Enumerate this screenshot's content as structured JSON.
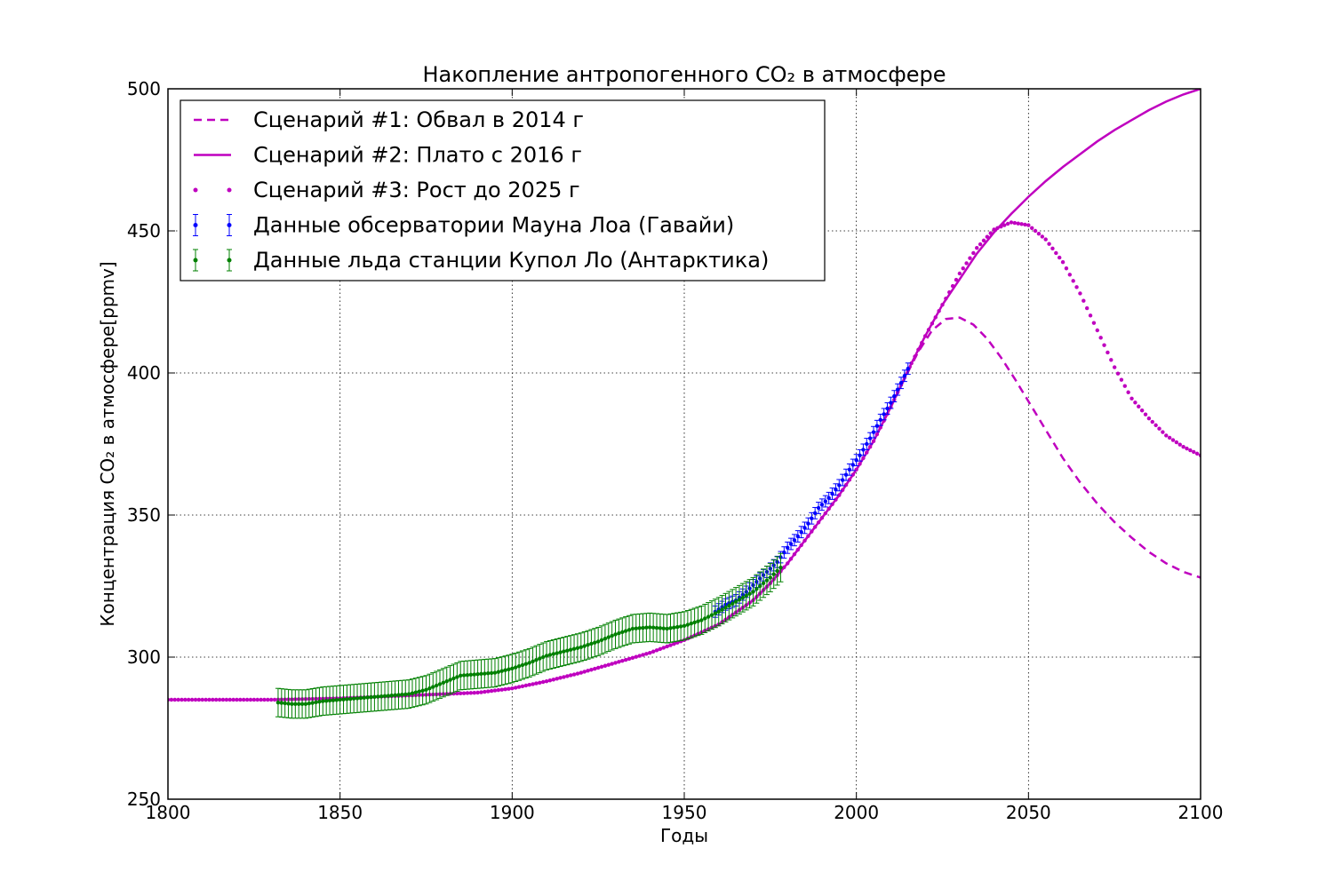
{
  "chart_data": {
    "type": "line",
    "title": "Накопление антропогенного CO₂ в атмосфере",
    "xlabel": "Годы",
    "ylabel": "Концентрация CO₂ в атмосфере[ppmv]",
    "xlim": [
      1800,
      2100
    ],
    "ylim": [
      250,
      500
    ],
    "xticks": [
      1800,
      1850,
      1900,
      1950,
      2000,
      2050,
      2100
    ],
    "yticks": [
      250,
      300,
      350,
      400,
      450,
      500
    ],
    "grid": true,
    "legend_position": "upper-left",
    "colors": {
      "scenario": "#bf00bf",
      "mauna_loa": "#0000ff",
      "ice": "#008000"
    },
    "series": [
      {
        "name": "Сценарий #1: Обвал в 2014 г",
        "style": "dashed",
        "x": [
          1800,
          1830,
          1850,
          1870,
          1890,
          1900,
          1910,
          1920,
          1930,
          1940,
          1950,
          1960,
          1970,
          1975,
          1980,
          1985,
          1990,
          1995,
          2000,
          2005,
          2010,
          2014,
          2018,
          2022,
          2026,
          2030,
          2034,
          2038,
          2042,
          2046,
          2050,
          2055,
          2060,
          2065,
          2070,
          2075,
          2080,
          2085,
          2090,
          2095,
          2100
        ],
        "y": [
          285,
          285,
          285.5,
          286.5,
          287.5,
          289,
          291.5,
          294.5,
          298,
          301.5,
          306,
          311.5,
          320,
          326,
          333,
          341,
          349,
          357,
          366,
          376,
          388,
          398,
          407.5,
          415,
          419,
          419.5,
          417,
          412,
          405.5,
          398,
          390,
          380,
          370,
          361.5,
          354,
          347.5,
          342,
          337,
          333,
          330,
          328
        ]
      },
      {
        "name": "Сценарий #2: Плато с 2016 г",
        "style": "solid",
        "x": [
          1800,
          1830,
          1850,
          1870,
          1890,
          1900,
          1910,
          1920,
          1930,
          1940,
          1950,
          1960,
          1970,
          1975,
          1980,
          1985,
          1990,
          1995,
          2000,
          2005,
          2010,
          2015,
          2020,
          2025,
          2030,
          2035,
          2040,
          2045,
          2050,
          2055,
          2060,
          2065,
          2070,
          2075,
          2080,
          2085,
          2090,
          2095,
          2100
        ],
        "y": [
          285,
          285,
          285.5,
          286.5,
          287.5,
          289,
          291.5,
          294.5,
          298,
          301.5,
          306,
          311.5,
          320,
          326,
          333,
          341,
          349,
          357,
          366,
          376,
          388,
          401,
          413,
          424,
          433,
          442,
          449.5,
          456,
          462,
          467.5,
          472.5,
          477,
          481.5,
          485.5,
          489,
          492.5,
          495.5,
          498,
          500
        ]
      },
      {
        "name": "Сценарий #3: Рост до 2025 г",
        "style": "dotted",
        "x": [
          1800,
          1830,
          1850,
          1870,
          1890,
          1900,
          1910,
          1920,
          1930,
          1940,
          1950,
          1960,
          1970,
          1975,
          1980,
          1985,
          1990,
          1995,
          2000,
          2005,
          2010,
          2015,
          2020,
          2025,
          2030,
          2035,
          2040,
          2045,
          2050,
          2055,
          2060,
          2065,
          2070,
          2075,
          2080,
          2085,
          2090,
          2095,
          2100
        ],
        "y": [
          285,
          285,
          285.5,
          286.5,
          287.5,
          289,
          291.5,
          294.5,
          298,
          301.5,
          306,
          311.5,
          320,
          326,
          333,
          341,
          349,
          357,
          366,
          376,
          388,
          401,
          413,
          424,
          435,
          444,
          450.5,
          453,
          452,
          447,
          439,
          428,
          415,
          402,
          391,
          384,
          378,
          374,
          371
        ]
      },
      {
        "name": "Данные обсерватории Мауна Лоа (Гавайи)",
        "style": "errorbar",
        "x": [
          1959,
          1962,
          1965,
          1968,
          1971,
          1974,
          1977,
          1980,
          1983,
          1986,
          1989,
          1992,
          1995,
          1998,
          2001,
          2004,
          2007,
          2010,
          2013,
          2015
        ],
        "y": [
          316,
          318.5,
          320,
          323,
          326.5,
          330,
          333.5,
          338.5,
          342.5,
          347,
          352.5,
          356,
          360.5,
          366,
          371,
          377,
          383.5,
          389.5,
          396.5,
          401.5
        ],
        "err": 2
      },
      {
        "name": "Данные льда станции Купол Ло (Антарктика)",
        "style": "errorbar",
        "x": [
          1832,
          1836,
          1840,
          1845,
          1850,
          1855,
          1860,
          1865,
          1870,
          1875,
          1880,
          1885,
          1890,
          1895,
          1900,
          1905,
          1910,
          1915,
          1920,
          1925,
          1930,
          1935,
          1940,
          1945,
          1950,
          1955,
          1960,
          1965,
          1970,
          1975,
          1978
        ],
        "y": [
          284,
          283.5,
          283.5,
          284.5,
          285,
          285.5,
          286,
          286.5,
          287,
          288.5,
          291,
          293.5,
          294,
          294.5,
          296,
          298,
          300.5,
          302,
          303.5,
          305.5,
          308,
          310,
          310.5,
          310,
          311,
          313,
          316,
          319.5,
          323,
          328,
          331.5
        ],
        "err": 5
      }
    ]
  }
}
